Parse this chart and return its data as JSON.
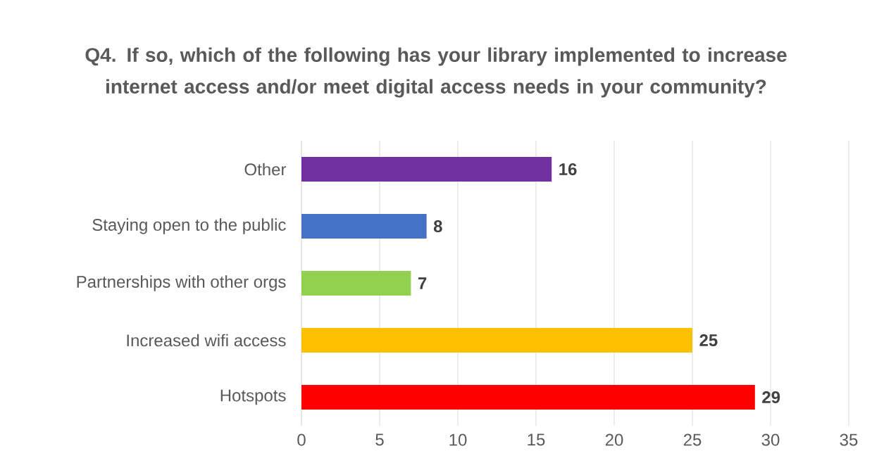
{
  "chart_data": {
    "type": "bar",
    "orientation": "horizontal",
    "title": "Q4. If so, which of the following has your library implemented to increase internet access and/or meet digital access needs in your community?",
    "categories": [
      "Other",
      "Staying open to the public",
      "Partnerships with other orgs",
      "Increased wifi access",
      "Hotspots"
    ],
    "values": [
      16,
      8,
      7,
      25,
      29
    ],
    "colors": [
      "#7030a0",
      "#4472c4",
      "#92d050",
      "#ffc000",
      "#ff0000"
    ],
    "xlim": [
      0,
      35
    ],
    "xticks": [
      0,
      5,
      10,
      15,
      20,
      25,
      30,
      35
    ],
    "grid": "x",
    "data_labels": true
  }
}
